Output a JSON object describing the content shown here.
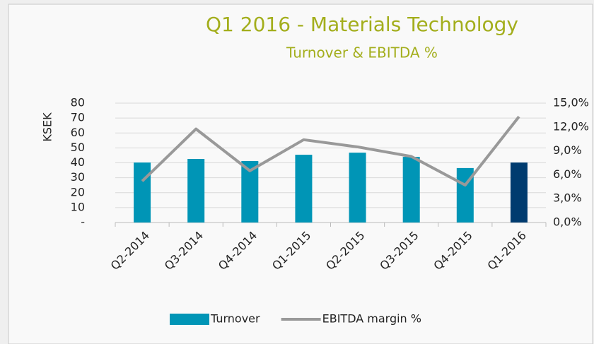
{
  "chart_data": {
    "type": "bar",
    "title": "Q1 2016 - Materials Technology",
    "subtitle": "Turnover & EBITDA %",
    "y_axis_label": "KSEK",
    "categories": [
      "Q2-2014",
      "Q3-2014",
      "Q4-2014",
      "Q1-2015",
      "Q2-2015",
      "Q3-2015",
      "Q4-2015",
      "Q1-2016"
    ],
    "series": [
      {
        "name": "Turnover",
        "type": "bar",
        "color": "#0095b6",
        "point_colors": [
          "#0095b6",
          "#0095b6",
          "#0095b6",
          "#0095b6",
          "#0095b6",
          "#0095b6",
          "#0095b6",
          "#003b6f"
        ],
        "values": [
          40.2,
          42.6,
          41.2,
          45.4,
          46.8,
          44,
          36.5,
          40.2
        ]
      },
      {
        "name": "EBITDA margin %",
        "type": "line",
        "color": "#999999",
        "axis": "y2",
        "values": [
          5.2,
          11.75,
          6.5,
          10.4,
          9.5,
          8.3,
          4.7,
          13.3
        ]
      }
    ],
    "ylim": [
      0,
      80
    ],
    "yticks": [
      {
        "value": 0,
        "label": "-"
      },
      10,
      20,
      30,
      40,
      50,
      60,
      70,
      80
    ],
    "y2lim": [
      0,
      15
    ],
    "y2ticks": [
      {
        "value": 0,
        "label": "0,0%"
      },
      {
        "value": 3,
        "label": "3,0%"
      },
      {
        "value": 6,
        "label": "6,0%"
      },
      {
        "value": 9,
        "label": "9,0%"
      },
      {
        "value": 12,
        "label": "12,0%"
      },
      {
        "value": 15,
        "label": "15,0%"
      }
    ],
    "grid": true,
    "legend": "bottom"
  }
}
